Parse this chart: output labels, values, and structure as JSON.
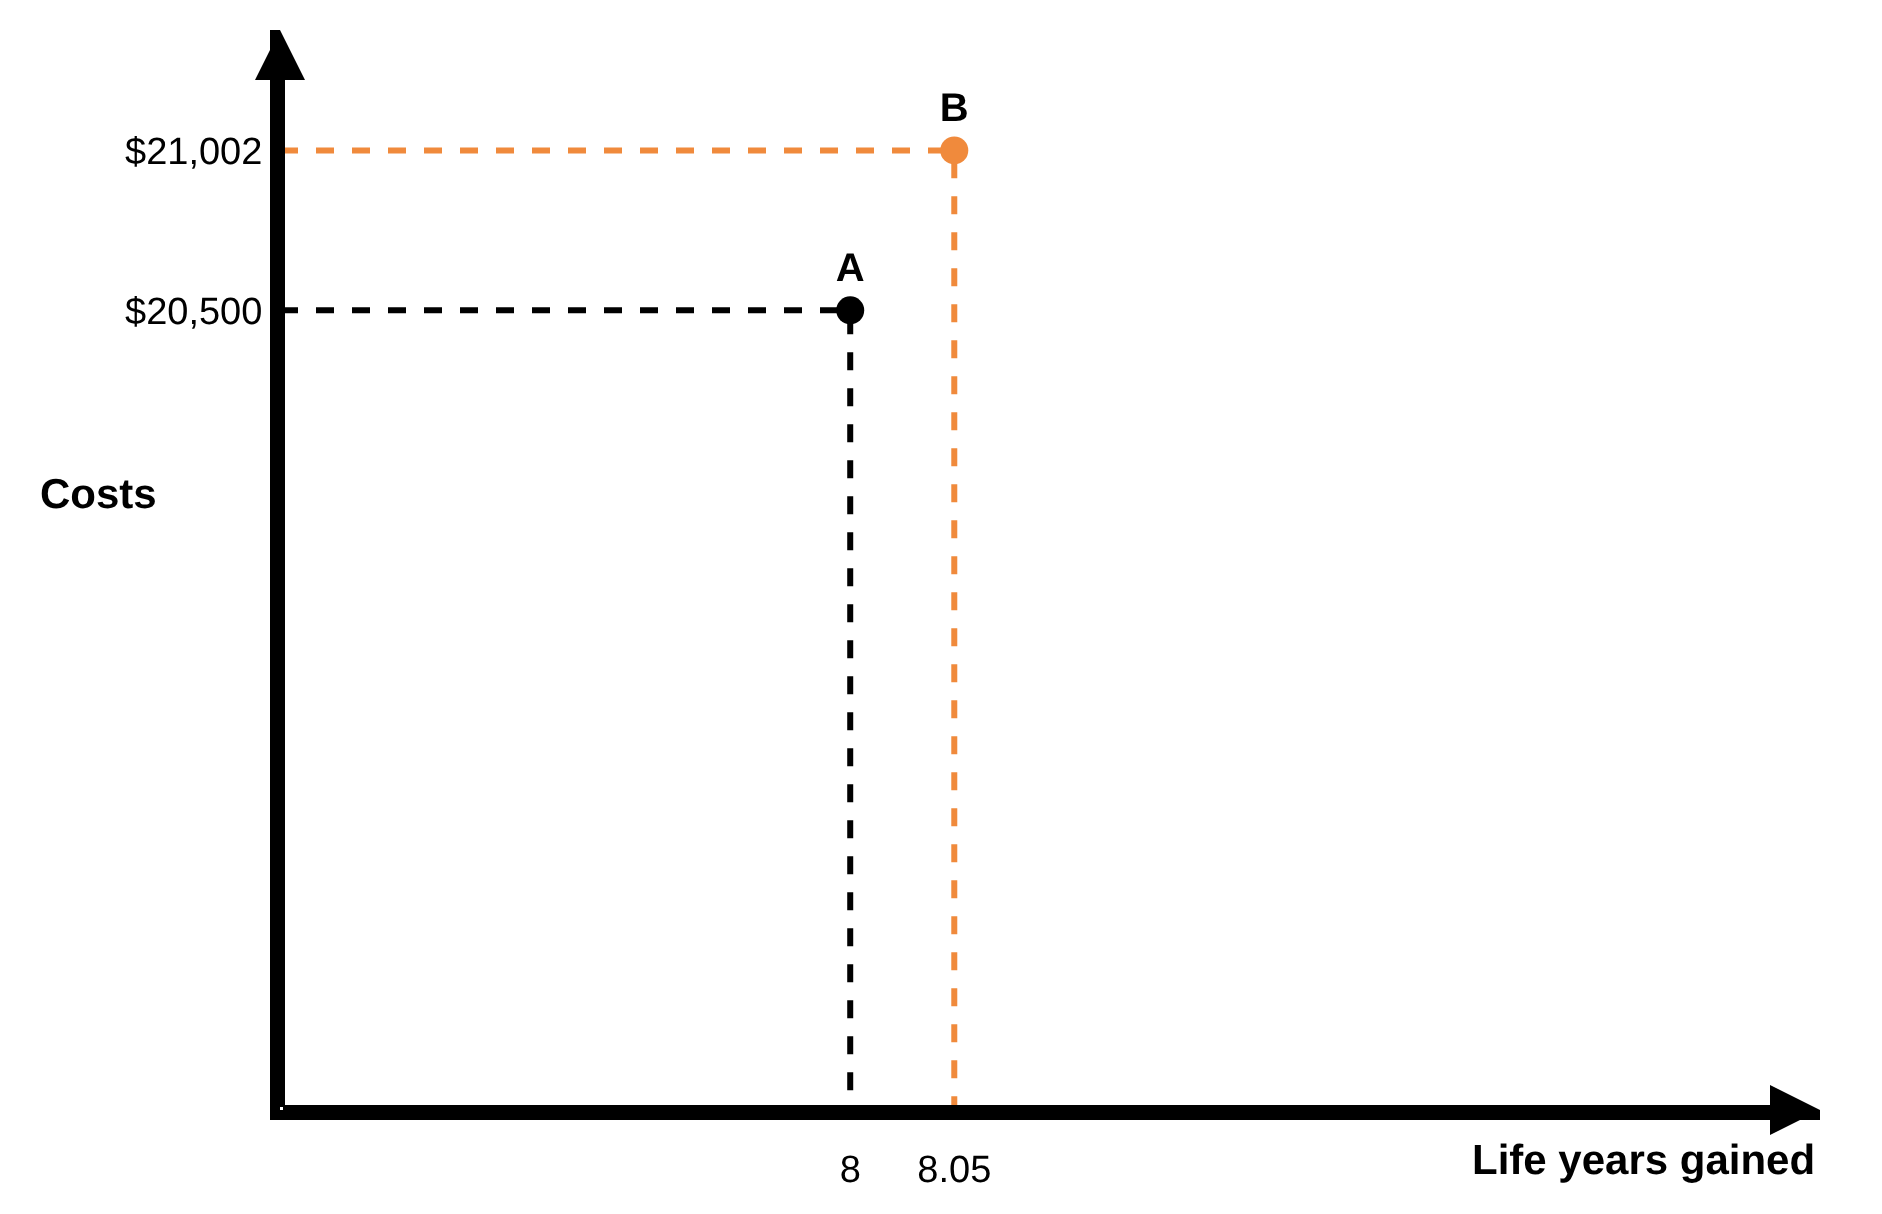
{
  "chart_data": {
    "type": "scatter",
    "xlabel": "Life years gained",
    "ylabel": "Costs",
    "xlim": [
      7.726,
      8.466
    ],
    "ylim": [
      17990,
      21380
    ],
    "xticks": [
      8,
      8.05
    ],
    "yticks": [
      {
        "value": 20500,
        "label": "$20,500"
      },
      {
        "value": 21002,
        "label": "$21,002"
      }
    ],
    "legend": false,
    "series": [
      {
        "type": "line",
        "line_style": "dashed",
        "marker": "none",
        "color": "#000000",
        "x": [
          7.726,
          8,
          8
        ],
        "values": [
          20500,
          20500,
          17990
        ]
      },
      {
        "type": "line",
        "line_style": "dashed",
        "marker": "none",
        "color": "#f08a3c",
        "x": [
          7.726,
          8.05,
          8.05
        ],
        "values": [
          21002,
          21002,
          17990
        ]
      },
      {
        "type": "scatter",
        "marker": "circle",
        "name": "A",
        "color": "#000000",
        "x": [
          8
        ],
        "values": [
          20500
        ]
      },
      {
        "type": "scatter",
        "marker": "circle",
        "name": "B",
        "color": "#f08a3c",
        "x": [
          8.05
        ],
        "values": [
          21002
        ]
      }
    ]
  }
}
